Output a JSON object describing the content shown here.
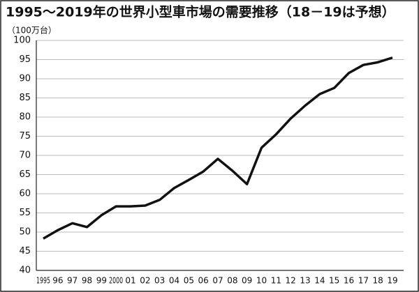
{
  "chart_data": {
    "type": "line",
    "title": "1995～2019年の世界小型車市場の需要推移（18－19は予想）",
    "y_label": "（100万台）",
    "categories": [
      "1995",
      "96",
      "97",
      "98",
      "99",
      "2000",
      "01",
      "02",
      "03",
      "04",
      "05",
      "06",
      "07",
      "08",
      "09",
      "10",
      "11",
      "12",
      "13",
      "14",
      "15",
      "16",
      "17",
      "18",
      "19"
    ],
    "values": [
      48.3,
      50.5,
      52.3,
      51.3,
      54.4,
      56.7,
      56.7,
      56.9,
      58.4,
      61.5,
      63.6,
      65.8,
      69.1,
      66.0,
      62.5,
      72.0,
      75.5,
      79.6,
      83.0,
      86.0,
      87.6,
      91.5,
      93.6,
      94.3,
      95.5
    ],
    "color": "#111111",
    "ylim": [
      40,
      100
    ],
    "yticks": [
      40,
      45,
      50,
      55,
      60,
      65,
      70,
      75,
      80,
      85,
      90,
      95,
      100
    ],
    "grid": true
  }
}
